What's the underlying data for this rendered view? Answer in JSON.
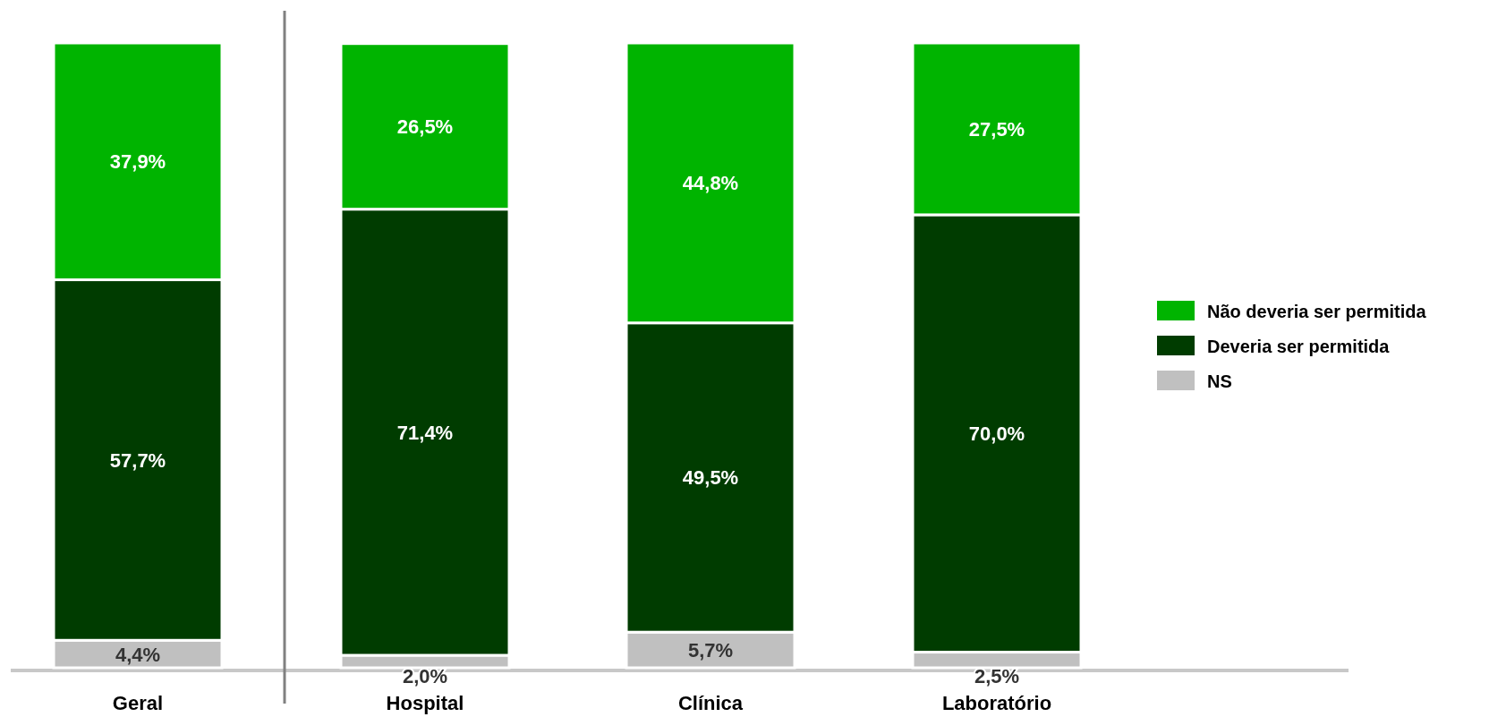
{
  "chart_data": {
    "type": "bar",
    "stacked": true,
    "categories": [
      "Geral",
      "Hospital",
      "Clínica",
      "Laboratório"
    ],
    "series": [
      {
        "name": "NS",
        "color": "#c0c0c0",
        "values": [
          4.4,
          2.0,
          5.7,
          2.5
        ],
        "value_labels": [
          "4,4%",
          "2,0%",
          "5,7%",
          "2,5%"
        ]
      },
      {
        "name": "Deveria ser permitida",
        "color": "#003c00",
        "values": [
          57.7,
          71.4,
          49.5,
          70.0
        ],
        "value_labels": [
          "57,7%",
          "71,4%",
          "49,5%",
          "70,0%"
        ]
      },
      {
        "name": "Não deveria ser permitida",
        "color": "#00b400",
        "values": [
          37.9,
          26.5,
          44.8,
          27.5
        ],
        "value_labels": [
          "37,9%",
          "26,5%",
          "44,8%",
          "27,5%"
        ]
      }
    ],
    "legend": "right",
    "tick_labels": "x"
  }
}
